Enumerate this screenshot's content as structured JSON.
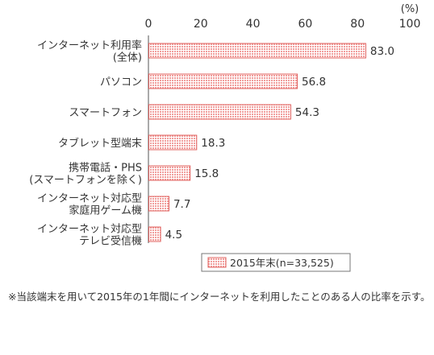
{
  "chart_data": {
    "type": "bar",
    "orientation": "horizontal",
    "unit_label": "(%)",
    "xlim": [
      0,
      100
    ],
    "x_ticks": [
      "0",
      "20",
      "40",
      "60",
      "80",
      "100"
    ],
    "categories": [
      [
        "インターネット利用率",
        "(全体)"
      ],
      [
        "パソコン"
      ],
      [
        "スマートフォン"
      ],
      [
        "タブレット型端末"
      ],
      [
        "携帯電話・PHS",
        "(スマートフォンを除く)"
      ],
      [
        "インターネット対応型",
        "家庭用ゲーム機"
      ],
      [
        "インターネット対応型",
        "テレビ受信機"
      ]
    ],
    "series": [
      {
        "name": "2015年末(n=33,525)",
        "values": [
          83.0,
          56.8,
          54.3,
          18.3,
          15.8,
          7.7,
          4.5
        ],
        "value_labels": [
          "83.0",
          "56.8",
          "54.3",
          "18.3",
          "15.8",
          "7.7",
          "4.5"
        ],
        "color": "#f4a9a8",
        "edge_color": "#e0605e"
      }
    ],
    "legend_position": "bottom",
    "grid": false
  },
  "note": "※当該端末を用いて2015年の1年間にインターネットを利用したことのある人の比率を示す。"
}
